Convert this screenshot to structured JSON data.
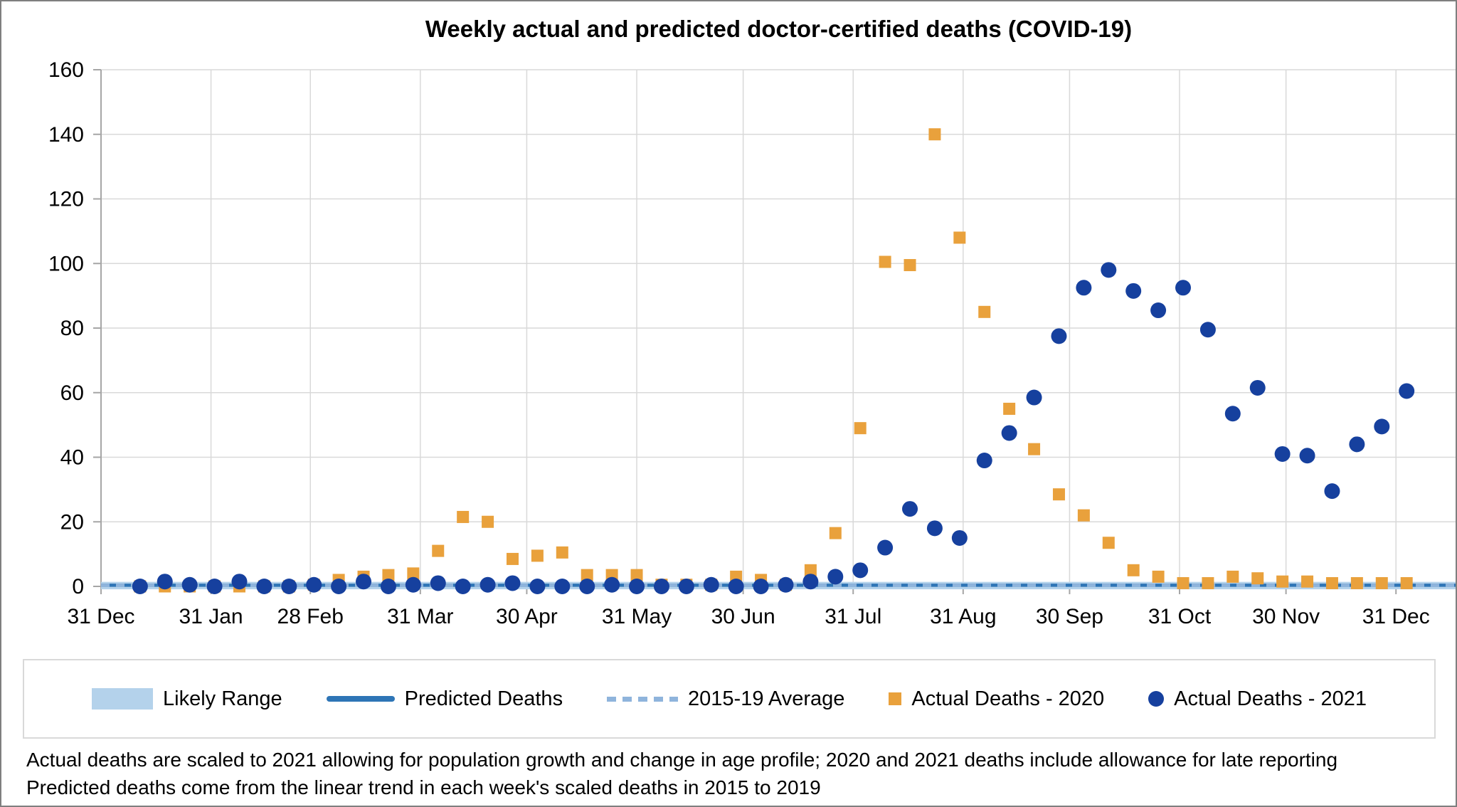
{
  "title": "Weekly actual and predicted doctor-certified deaths (COVID-19)",
  "footnotes": {
    "line1": "Actual deaths are scaled to 2021 allowing for population growth and change in age profile; 2020 and 2021 deaths include allowance for late reporting",
    "line2": "Predicted deaths come from the linear trend in each week's scaled deaths in 2015 to 2019"
  },
  "colors": {
    "actual_2020": "#e9a13c",
    "actual_2021": "#16409e",
    "predicted": "#2e75b6",
    "average_2015_19": "#8fb4dc",
    "likely_range": "#b4d2eb",
    "gridline": "#d9d9d9",
    "axis": "#a6a6a6",
    "text": "#000000"
  },
  "legend": {
    "items": [
      {
        "label": "Likely Range",
        "type": "band"
      },
      {
        "label": "Predicted Deaths",
        "type": "solid-line"
      },
      {
        "label": "2015-19 Average",
        "type": "dashed-line"
      },
      {
        "label": "Actual Deaths - 2020",
        "type": "square-marker"
      },
      {
        "label": "Actual Deaths - 2021",
        "type": "circle-marker"
      }
    ]
  },
  "chart_data": {
    "type": "scatter",
    "title": "Weekly actual and predicted doctor-certified deaths (COVID-19)",
    "xlabel": "",
    "ylabel": "",
    "grid": true,
    "legend_position": "bottom",
    "ylim": [
      0,
      160
    ],
    "y_tick_step": 20,
    "y_ticks": [
      0,
      20,
      40,
      60,
      80,
      100,
      120,
      140,
      160
    ],
    "xlim_days": [
      0,
      382
    ],
    "x_ticks": [
      {
        "label": "31 Dec",
        "day": 0
      },
      {
        "label": "31 Jan",
        "day": 31
      },
      {
        "label": "28 Feb",
        "day": 59
      },
      {
        "label": "31 Mar",
        "day": 90
      },
      {
        "label": "30 Apr",
        "day": 120
      },
      {
        "label": "31 May",
        "day": 151
      },
      {
        "label": "30 Jun",
        "day": 181
      },
      {
        "label": "31 Jul",
        "day": 212
      },
      {
        "label": "31 Aug",
        "day": 243
      },
      {
        "label": "30 Sep",
        "day": 273
      },
      {
        "label": "31 Oct",
        "day": 304
      },
      {
        "label": "30 Nov",
        "day": 334
      },
      {
        "label": "31 Dec",
        "day": 365
      }
    ],
    "week_days": [
      11,
      18,
      25,
      32,
      39,
      46,
      53,
      60,
      67,
      74,
      81,
      88,
      95,
      102,
      109,
      116,
      123,
      130,
      137,
      144,
      151,
      158,
      165,
      172,
      179,
      186,
      193,
      200,
      207,
      214,
      221,
      228,
      235,
      242,
      249,
      256,
      263,
      270,
      277,
      284,
      291,
      298,
      305,
      312,
      319,
      326,
      333,
      340,
      347,
      354,
      361,
      368
    ],
    "series": [
      {
        "name": "Actual Deaths - 2020",
        "marker": "square",
        "values": [
          0,
          0,
          0,
          0,
          0,
          0,
          0,
          0.5,
          2,
          3,
          3.5,
          4,
          11,
          21.5,
          20,
          8.5,
          9.5,
          10.5,
          3.5,
          3.5,
          3.5,
          0.5,
          0.5,
          0.5,
          3,
          2,
          0.5,
          5,
          16.5,
          49,
          100.5,
          99.5,
          140,
          108,
          85,
          55,
          42.5,
          28.5,
          22,
          13.5,
          5,
          3,
          1,
          1,
          3,
          2.5,
          1.5,
          1.5,
          1,
          1,
          1,
          1
        ]
      },
      {
        "name": "Actual Deaths - 2021",
        "marker": "circle",
        "values": [
          0,
          1.5,
          0.5,
          0,
          1.5,
          0,
          0,
          0.5,
          0,
          1.5,
          0,
          0.5,
          1,
          0,
          0.5,
          1,
          0,
          0,
          0,
          0.5,
          0,
          0,
          0,
          0.5,
          0,
          0,
          0.5,
          1.5,
          3,
          5,
          12,
          24,
          18,
          15,
          39,
          47.5,
          58.5,
          77.5,
          92.5,
          98,
          91.5,
          85.5,
          92.5,
          79.5,
          53.5,
          61.5,
          41,
          40.5,
          29.5,
          44,
          49.5,
          60.5
        ]
      }
    ],
    "predicted_line": {
      "name": "Predicted Deaths",
      "constant_value": 0.35
    },
    "average_line": {
      "name": "2015-19 Average",
      "constant_value": 0.35,
      "style": "dashed"
    },
    "likely_range_band": {
      "name": "Likely Range",
      "low": -0.9,
      "high": 1.4
    }
  }
}
